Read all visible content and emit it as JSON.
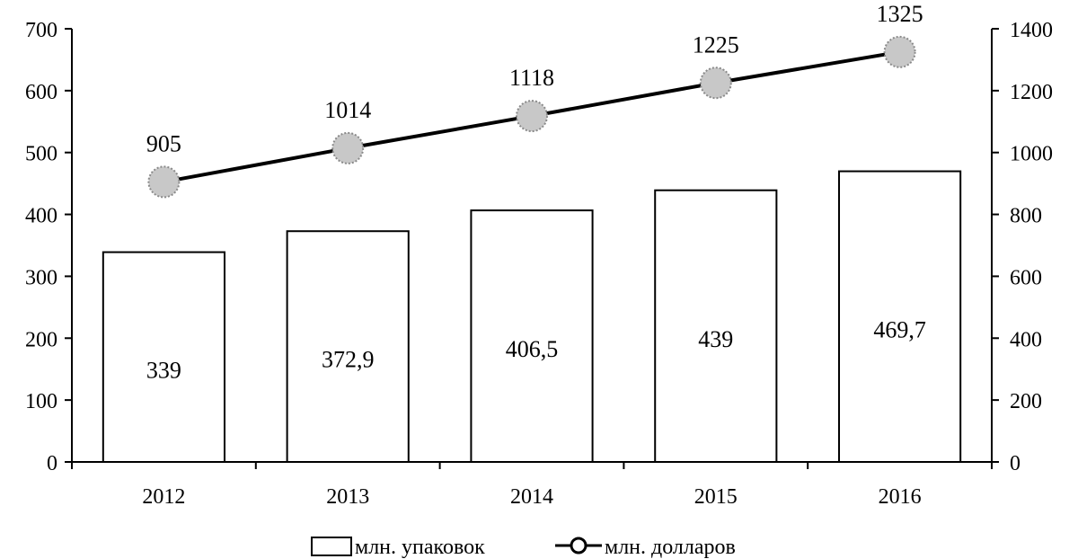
{
  "chart_data": {
    "type": "bar+line",
    "categories": [
      "2012",
      "2013",
      "2014",
      "2015",
      "2016"
    ],
    "series": [
      {
        "name": "млн. упаковок",
        "type": "bar",
        "axis": "left",
        "values": [
          339,
          372.9,
          406.5,
          439,
          469.7
        ],
        "labels": [
          "339",
          "372,9",
          "406,5",
          "439",
          "469,7"
        ]
      },
      {
        "name": "млн. долларов",
        "type": "line",
        "axis": "right",
        "values": [
          905,
          1014,
          1118,
          1225,
          1325
        ],
        "labels": [
          "905",
          "1014",
          "1118",
          "1225",
          "1325"
        ]
      }
    ],
    "y_left": {
      "lim": [
        0,
        700
      ],
      "ticks": [
        0,
        100,
        200,
        300,
        400,
        500,
        600,
        700
      ]
    },
    "y_right": {
      "lim": [
        0,
        1400
      ],
      "ticks": [
        0,
        200,
        400,
        600,
        800,
        1000,
        1200,
        1400
      ]
    },
    "grid": false,
    "legend_position": "bottom-center"
  }
}
